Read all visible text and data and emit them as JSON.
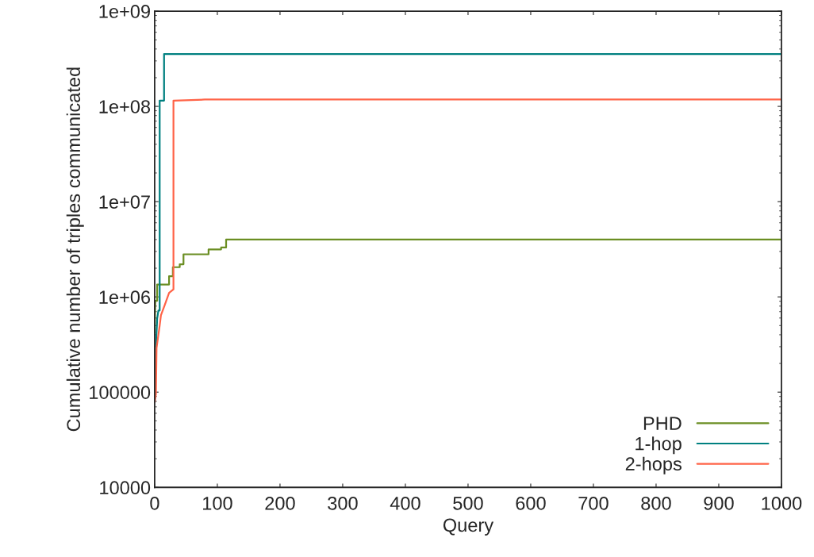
{
  "chart_data": {
    "type": "line",
    "xlabel": "Query",
    "ylabel": "Cumulative number of triples communicated",
    "log": "y",
    "xlim": [
      0,
      1000
    ],
    "xticks": [
      0,
      100,
      200,
      300,
      400,
      500,
      600,
      700,
      800,
      900,
      1000
    ],
    "ylim": [
      10000,
      1000000000
    ],
    "yticks": [
      {
        "value": 10000,
        "label": "10000"
      },
      {
        "value": 100000,
        "label": "100000"
      },
      {
        "value": 1000000,
        "label": "1e+06"
      },
      {
        "value": 10000000,
        "label": "1e+07"
      },
      {
        "value": 100000000,
        "label": "1e+08"
      },
      {
        "value": 1000000000,
        "label": "1e+09"
      }
    ],
    "grid": false,
    "legend": "bottom right",
    "marker": "none",
    "line_style": "solid",
    "series": [
      {
        "name": "PHD",
        "color": "#6b8e23",
        "x": [
          0,
          1,
          4,
          4,
          23,
          23,
          29,
          29,
          40,
          40,
          46,
          46,
          86,
          86,
          106,
          106,
          114,
          114,
          123,
          1000
        ],
        "values": [
          420000,
          910000,
          910000,
          1350000,
          1350000,
          1650000,
          1650000,
          2050000,
          2050000,
          2200000,
          2200000,
          2800000,
          2800000,
          3150000,
          3150000,
          3300000,
          3300000,
          4000000,
          4000000,
          4000000
        ]
      },
      {
        "name": "1-hop",
        "color": "#008080",
        "x": [
          0,
          2,
          4,
          6,
          8,
          8,
          15,
          15,
          1000
        ],
        "values": [
          80000,
          300000,
          590000,
          720000,
          720000,
          115000000,
          115000000,
          355000000,
          355000000
        ]
      },
      {
        "name": "2-hops",
        "color": "#ff6347",
        "x": [
          0,
          2,
          3,
          8,
          10,
          16,
          23,
          30,
          30,
          80,
          1000
        ],
        "values": [
          78000,
          95000,
          290000,
          500000,
          640000,
          820000,
          1100000,
          1200000,
          115000000,
          118000000,
          118000000
        ]
      }
    ]
  }
}
